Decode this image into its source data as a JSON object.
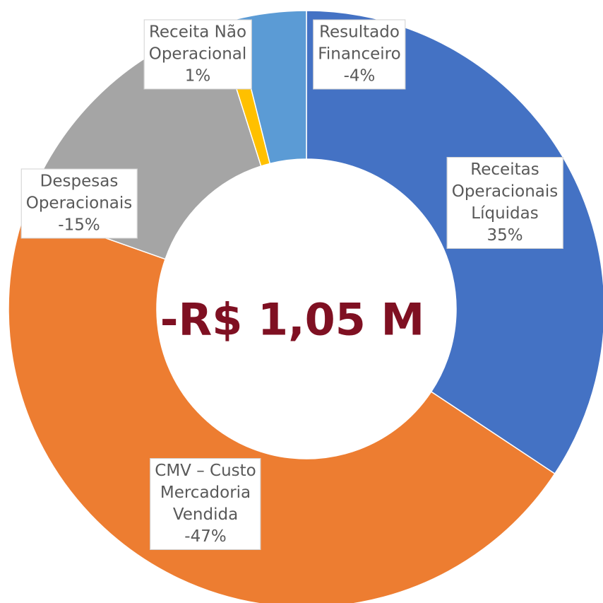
{
  "chart_data": {
    "type": "donut",
    "categories": [
      "Receitas\nOperacionais\nLíquidas",
      "CMV – Custo\nMercadoria\nVendida",
      "Despesas\nOperacionais",
      "Receita Não\nOperacional",
      "Resultado\nFinanceiro"
    ],
    "values": [
      35,
      -47,
      -15,
      1,
      -4
    ],
    "value_labels": [
      "35%",
      "-47%",
      "-15%",
      "1%",
      "-4%"
    ],
    "colors": [
      "#4472c4",
      "#ed7d31",
      "#a5a5a5",
      "#ffc000",
      "#5b9bd5"
    ],
    "center_label": "-R$ 1,05 M"
  }
}
